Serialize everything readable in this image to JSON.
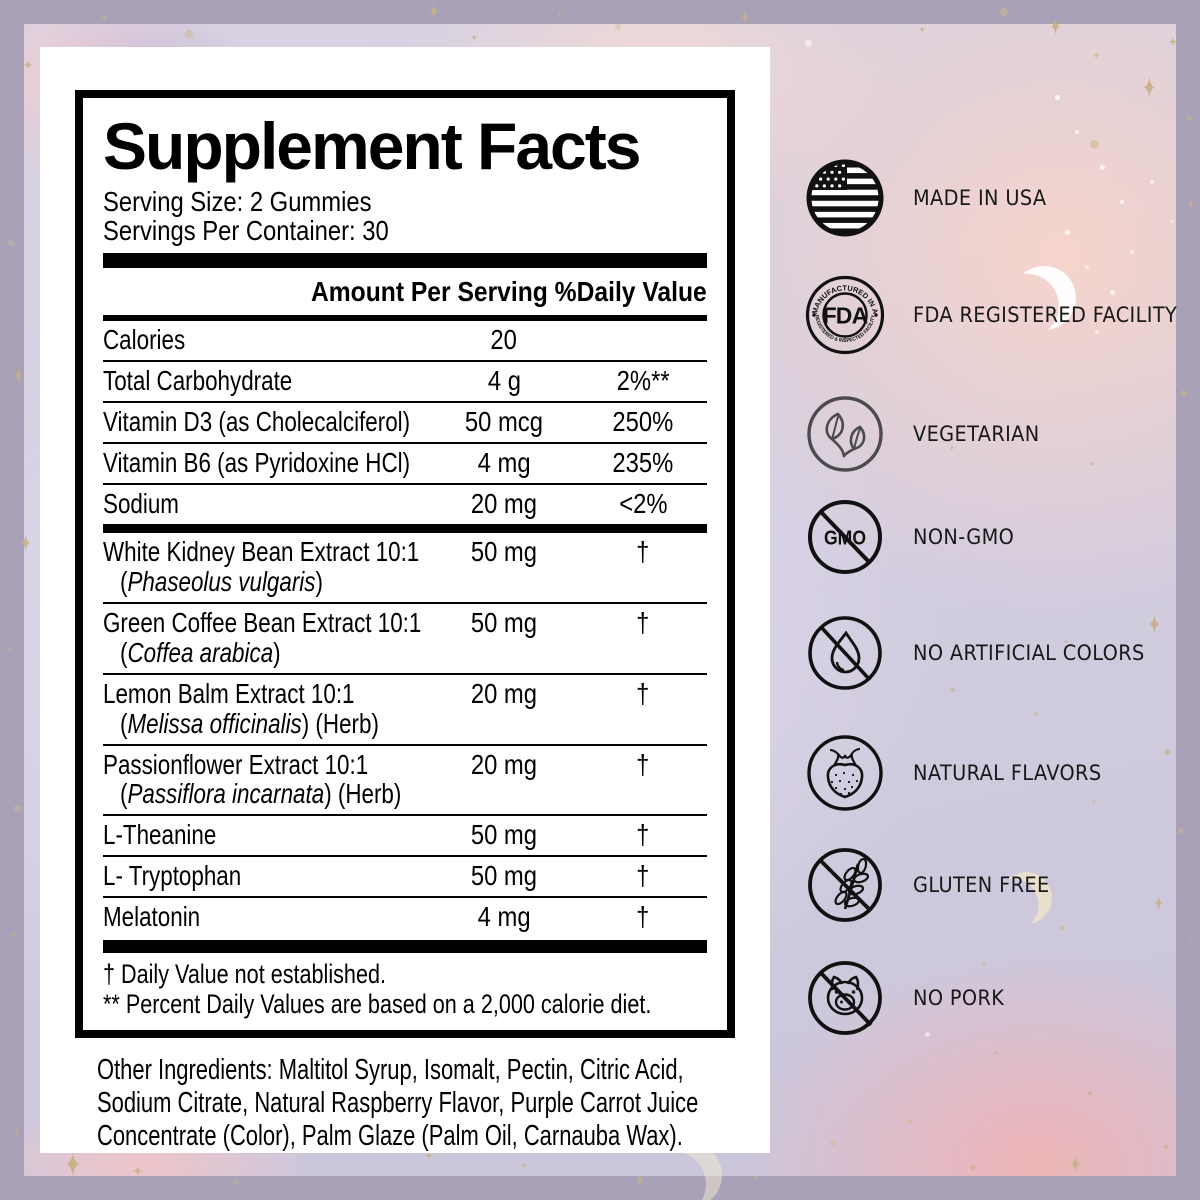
{
  "facts": {
    "title": "Supplement Facts",
    "serving_size": "Serving Size: 2 Gummies",
    "servings_per_container": "Servings Per Container: 30",
    "column_headers": {
      "amount": "Amount Per Serving",
      "daily_value": "%Daily Value"
    },
    "rows": [
      {
        "group": "nutrients",
        "name": "Calories",
        "amount": "20",
        "dv": ""
      },
      {
        "group": "nutrients",
        "name": "Total Carbohydrate",
        "amount": "4 g",
        "dv": "2%**"
      },
      {
        "group": "nutrients",
        "name": "Vitamin D3 (as Cholecalciferol)",
        "amount": "50 mcg",
        "dv": "250%"
      },
      {
        "group": "nutrients",
        "name": "Vitamin B6 (as Pyridoxine HCl)",
        "amount": "4 mg",
        "dv": "235%"
      },
      {
        "group": "nutrients",
        "name": "Sodium",
        "amount": "20 mg",
        "dv": "<2%"
      },
      {
        "group": "botanicals",
        "name": "White Kidney Bean Extract 10:1",
        "sub_prefix": "(",
        "sub_italic": "Phaseolus vulgaris",
        "sub_suffix": ")",
        "amount": "50 mg",
        "dv": "†"
      },
      {
        "group": "botanicals",
        "name": "Green Coffee Bean Extract 10:1",
        "sub_prefix": "(",
        "sub_italic": "Coffea arabica",
        "sub_suffix": ")",
        "amount": "50 mg",
        "dv": "†"
      },
      {
        "group": "botanicals",
        "name": "Lemon Balm Extract 10:1",
        "sub_prefix": "(",
        "sub_italic": "Melissa officinalis",
        "sub_suffix": ") (Herb)",
        "amount": "20 mg",
        "dv": "†"
      },
      {
        "group": "botanicals",
        "name": "Passionflower Extract 10:1",
        "sub_prefix": "(",
        "sub_italic": "Passiflora incarnata",
        "sub_suffix": ") (Herb)",
        "amount": "20 mg",
        "dv": "†"
      },
      {
        "group": "botanicals",
        "name": "L-Theanine",
        "amount": "50 mg",
        "dv": "†"
      },
      {
        "group": "botanicals",
        "name": "L- Tryptophan",
        "amount": "50 mg",
        "dv": "†"
      },
      {
        "group": "botanicals",
        "name": "Melatonin",
        "amount": "4 mg",
        "dv": "†"
      }
    ],
    "footnotes": [
      "† Daily Value not established.",
      "** Percent Daily Values are based on a 2,000 calorie diet."
    ],
    "other_ingredients": "Other Ingredients: Maltitol Syrup, Isomalt, Pectin, Citric Acid, Sodium Citrate, Natural Raspberry Flavor, Purple Carrot Juice Concentrate (Color), Palm Glaze (Palm Oil, Carnauba Wax)."
  },
  "badges": [
    {
      "icon": "usa-flag-icon",
      "label": "MADE IN USA"
    },
    {
      "icon": "fda-seal-icon",
      "label": "FDA REGISTERED FACILITY",
      "seal": {
        "center": "FDA",
        "top_arc": "MANUFACTURED IN A",
        "bottom_arc": "REGISTERED & INSPECTED FACILITY"
      }
    },
    {
      "icon": "vegetarian-leaf-icon",
      "label": "VEGETARIAN"
    },
    {
      "icon": "non-gmo-icon",
      "label": "NON-GMO",
      "icon_text": "GMO"
    },
    {
      "icon": "no-artificial-colors-icon",
      "label": "NO ARTIFICIAL COLORS"
    },
    {
      "icon": "natural-flavors-strawberry-icon",
      "label": "NATURAL FLAVORS"
    },
    {
      "icon": "gluten-free-icon",
      "label": "GLUTEN FREE"
    },
    {
      "icon": "no-pork-icon",
      "label": "NO PORK"
    }
  ],
  "colors": {
    "frame": "#a9a1b7",
    "card": "#ffffff",
    "ink": "#000000",
    "gold_star": "#c9b184"
  }
}
